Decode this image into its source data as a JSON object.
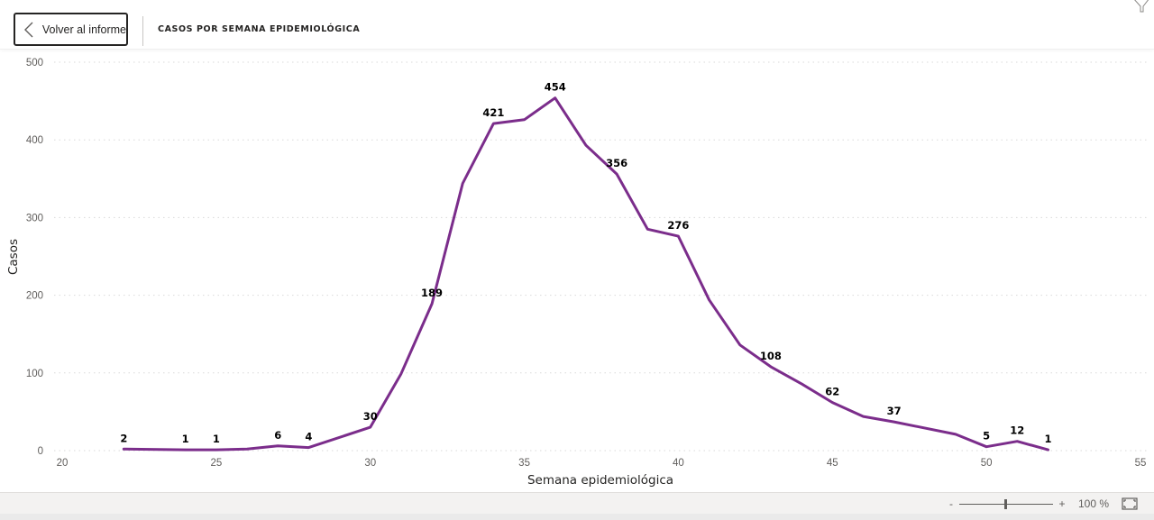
{
  "header": {
    "back_label": "Volver al informe",
    "title": "CASOS POR SEMANA EPIDEMIOLÓGICA"
  },
  "footer": {
    "zoom_minus": "-",
    "zoom_plus": "+",
    "zoom_level": "100 %"
  },
  "colors": {
    "line": "#7B2D8B",
    "label": "#000000",
    "axis_text": "#605e5c",
    "grid": "#d9d9d9"
  },
  "chart_data": {
    "type": "line",
    "title": "CASOS POR SEMANA EPIDEMIOLÓGICA",
    "xlabel": "Semana epidemiológica",
    "ylabel": "Casos",
    "xlim": [
      20,
      55
    ],
    "ylim": [
      0,
      500
    ],
    "x_ticks": [
      20,
      25,
      30,
      35,
      40,
      45,
      50,
      55
    ],
    "y_ticks": [
      0,
      100,
      200,
      300,
      400,
      500
    ],
    "grid": true,
    "legend": null,
    "series": [
      {
        "name": "Casos",
        "x": [
          22,
          24,
          25,
          26,
          27,
          28,
          30,
          31,
          32,
          33,
          34,
          35,
          36,
          37,
          38,
          39,
          40,
          41,
          42,
          43,
          44,
          45,
          46,
          47,
          49,
          50,
          51,
          52
        ],
        "values": [
          2,
          1,
          1,
          2,
          6,
          4,
          30,
          99,
          189,
          344,
          421,
          426,
          454,
          393,
          356,
          285,
          276,
          194,
          136,
          108,
          86,
          62,
          44,
          37,
          21,
          5,
          12,
          1
        ]
      }
    ],
    "data_labels": [
      {
        "x": 22,
        "label": "2"
      },
      {
        "x": 24,
        "label": "1"
      },
      {
        "x": 25,
        "label": "1"
      },
      {
        "x": 27,
        "label": "6"
      },
      {
        "x": 28,
        "label": "4"
      },
      {
        "x": 30,
        "label": "30"
      },
      {
        "x": 32,
        "label": "189"
      },
      {
        "x": 34,
        "label": "421"
      },
      {
        "x": 36,
        "label": "454"
      },
      {
        "x": 38,
        "label": "356"
      },
      {
        "x": 40,
        "label": "276"
      },
      {
        "x": 43,
        "label": "108"
      },
      {
        "x": 45,
        "label": "62"
      },
      {
        "x": 47,
        "label": "37"
      },
      {
        "x": 50,
        "label": "5"
      },
      {
        "x": 51,
        "label": "12"
      },
      {
        "x": 52,
        "label": "1"
      }
    ]
  }
}
